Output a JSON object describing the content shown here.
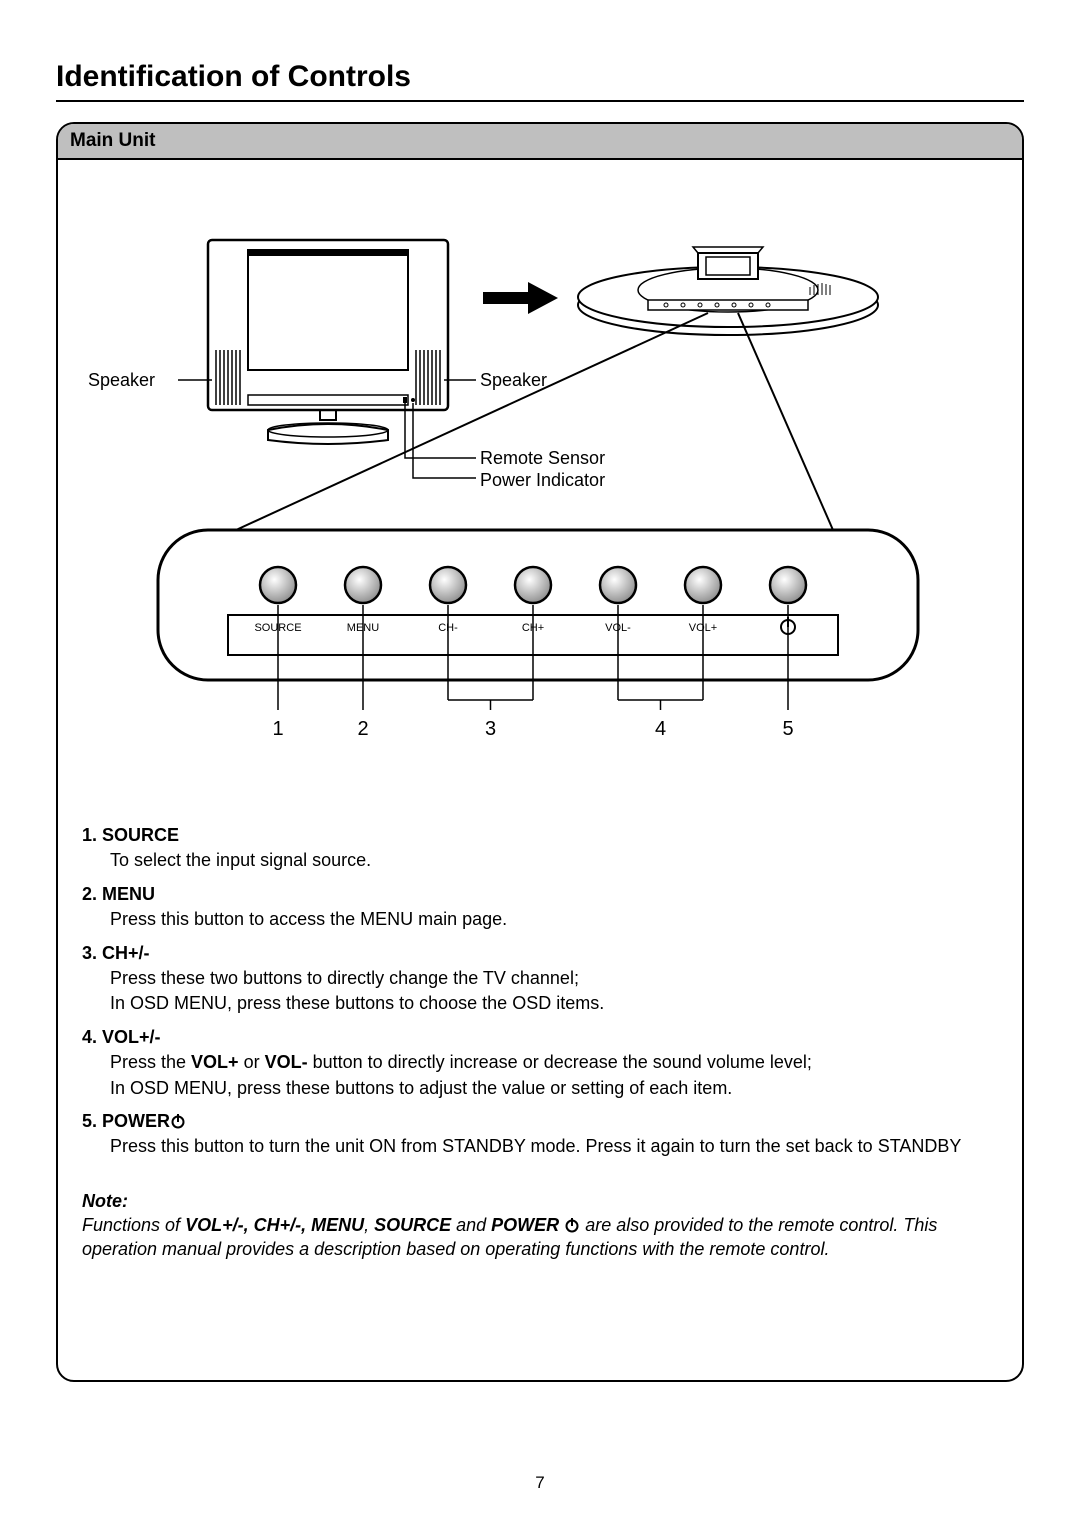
{
  "page": {
    "title": "Identification of Controls",
    "section_header": "Main Unit",
    "page_number": "7"
  },
  "diagram": {
    "speaker_left_label": "Speaker",
    "speaker_right_label": "Speaker",
    "remote_sensor_label": "Remote Sensor",
    "power_indicator_label": "Power Indicator",
    "buttons": [
      {
        "label": "SOURCE"
      },
      {
        "label": "MENU"
      },
      {
        "label": "CH-"
      },
      {
        "label": "CH+"
      },
      {
        "label": "VOL-"
      },
      {
        "label": "VOL+"
      },
      {
        "label": ""
      }
    ],
    "callouts": [
      "1",
      "2",
      "3",
      "4",
      "5"
    ],
    "colors": {
      "stroke": "#000000",
      "button_fill_top": "#ffffff",
      "button_fill_bottom": "#8a8a8a",
      "panel_header_bg": "#bfbfbf",
      "background": "#ffffff"
    },
    "style": {
      "panel_border_radius": 18,
      "button_radius": 16,
      "stroke_width": 2
    }
  },
  "controls": [
    {
      "num": "1.",
      "name": "SOURCE",
      "desc_lines": [
        "To select the input signal source."
      ]
    },
    {
      "num": "2.",
      "name": "MENU",
      "desc_lines": [
        "Press this button to access the MENU main page."
      ]
    },
    {
      "num": "3.",
      "name": "CH+/-",
      "desc_lines": [
        "Press these two buttons to directly change the TV channel;",
        "In OSD MENU, press these buttons to choose the OSD items."
      ]
    },
    {
      "num": "4.",
      "name": "VOL+/-",
      "desc_lines_html": [
        "Press the <b>VOL+</b> or <b>VOL-</b> button to directly increase or decrease the sound volume level;",
        "In OSD MENU, press these buttons to adjust the value or setting of each item."
      ]
    },
    {
      "num": "5.",
      "name": "POWER",
      "has_power_icon": true,
      "desc_lines": [
        "Press this button to turn the unit ON from STANDBY mode. Press it again to turn the set back to STANDBY"
      ]
    }
  ],
  "note": {
    "title": "Note:",
    "text_parts": [
      "Functions of ",
      {
        "bold": "VOL+/-, CH+/-, MENU"
      },
      ", ",
      {
        "bold": "SOURCE"
      },
      " and ",
      {
        "bold": "POWER"
      },
      " ",
      {
        "power_icon": true
      },
      " are also provided to the remote control. This operation manual provides a description based on operating functions with the remote control."
    ]
  }
}
